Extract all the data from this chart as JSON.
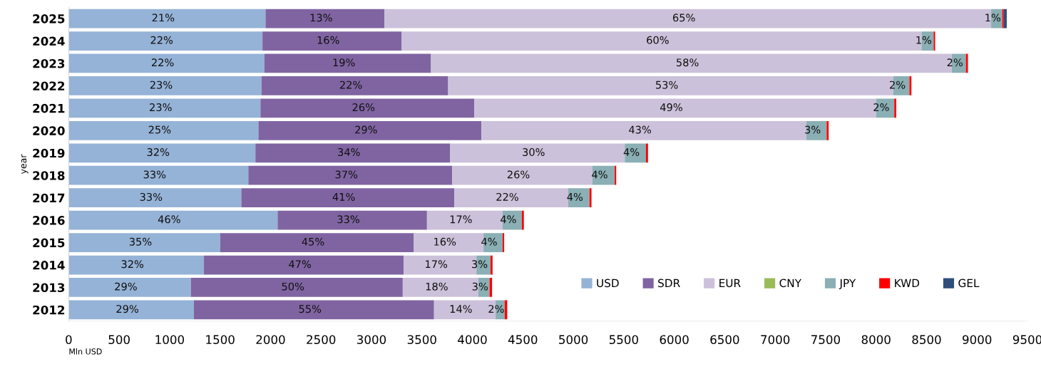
{
  "chart_data": {
    "type": "bar",
    "orientation": "horizontal",
    "stacked": true,
    "ylabel": "year",
    "xlabel": "Mln USD",
    "categories": [
      "2025",
      "2024",
      "2023",
      "2022",
      "2021",
      "2020",
      "2019",
      "2018",
      "2017",
      "2016",
      "2015",
      "2014",
      "2013",
      "2012"
    ],
    "series": [
      {
        "name": "USD",
        "color": "#95b3d7",
        "values": [
          1950,
          1920,
          1940,
          1910,
          1900,
          1880,
          1850,
          1780,
          1710,
          2070,
          1500,
          1340,
          1210,
          1240
        ]
      },
      {
        "name": "SDR",
        "color": "#8064a2",
        "values": [
          1180,
          1380,
          1650,
          1850,
          2120,
          2210,
          1930,
          2020,
          2110,
          1480,
          1920,
          1980,
          2100,
          2380
        ]
      },
      {
        "name": "EUR",
        "color": "#ccc1da",
        "values": [
          6010,
          5150,
          5160,
          4410,
          3980,
          3220,
          1730,
          1390,
          1130,
          750,
          690,
          720,
          750,
          610
        ]
      },
      {
        "name": "CNY",
        "color": "#9bbb59",
        "values": [
          0,
          0,
          0,
          0,
          0,
          0,
          0,
          0,
          0,
          0,
          0,
          0,
          0,
          0
        ]
      },
      {
        "name": "JPY",
        "color": "#8aafb5",
        "values": [
          110,
          120,
          140,
          160,
          180,
          200,
          210,
          220,
          210,
          190,
          190,
          140,
          110,
          90
        ]
      },
      {
        "name": "KWD",
        "color": "#ff0000",
        "values": [
          15,
          15,
          20,
          20,
          20,
          20,
          20,
          15,
          20,
          20,
          15,
          20,
          25,
          25
        ]
      },
      {
        "name": "GEL",
        "color": "#2f4e7a",
        "values": [
          30,
          0,
          0,
          0,
          0,
          0,
          0,
          0,
          0,
          0,
          0,
          0,
          0,
          0
        ]
      }
    ],
    "annotations": [
      {
        "text": "21%",
        "x": 975,
        "y": "2025"
      },
      {
        "text": "13%",
        "x": 2540,
        "y": "2025"
      },
      {
        "text": "65%",
        "x": 6135,
        "y": "2025"
      },
      {
        "text": "1%",
        "x": 9195,
        "y": "2025"
      },
      {
        "text": "22%",
        "x": 960,
        "y": "2024"
      },
      {
        "text": "16%",
        "x": 2610,
        "y": "2024"
      },
      {
        "text": "60%",
        "x": 5875,
        "y": "2024"
      },
      {
        "text": "1%",
        "x": 8510,
        "y": "2024"
      },
      {
        "text": "22%",
        "x": 970,
        "y": "2023"
      },
      {
        "text": "19%",
        "x": 2765,
        "y": "2023"
      },
      {
        "text": "58%",
        "x": 6170,
        "y": "2023"
      },
      {
        "text": "2%",
        "x": 8820,
        "y": "2023"
      },
      {
        "text": "23%",
        "x": 955,
        "y": "2022"
      },
      {
        "text": "22%",
        "x": 2835,
        "y": "2022"
      },
      {
        "text": "53%",
        "x": 5965,
        "y": "2022"
      },
      {
        "text": "2%",
        "x": 8250,
        "y": "2022"
      },
      {
        "text": "23%",
        "x": 950,
        "y": "2021"
      },
      {
        "text": "26%",
        "x": 2960,
        "y": "2021"
      },
      {
        "text": "49%",
        "x": 6010,
        "y": "2021"
      },
      {
        "text": "2%",
        "x": 8090,
        "y": "2021"
      },
      {
        "text": "25%",
        "x": 940,
        "y": "2020"
      },
      {
        "text": "29%",
        "x": 2985,
        "y": "2020"
      },
      {
        "text": "43%",
        "x": 5700,
        "y": "2020"
      },
      {
        "text": "3%",
        "x": 7410,
        "y": "2020"
      },
      {
        "text": "32%",
        "x": 925,
        "y": "2019"
      },
      {
        "text": "34%",
        "x": 2815,
        "y": "2019"
      },
      {
        "text": "30%",
        "x": 4645,
        "y": "2019"
      },
      {
        "text": "4%",
        "x": 5615,
        "y": "2019"
      },
      {
        "text": "33%",
        "x": 890,
        "y": "2018"
      },
      {
        "text": "37%",
        "x": 2790,
        "y": "2018"
      },
      {
        "text": "26%",
        "x": 4495,
        "y": "2018"
      },
      {
        "text": "4%",
        "x": 5300,
        "y": "2018"
      },
      {
        "text": "33%",
        "x": 855,
        "y": "2017"
      },
      {
        "text": "41%",
        "x": 2765,
        "y": "2017"
      },
      {
        "text": "22%",
        "x": 4385,
        "y": "2017"
      },
      {
        "text": "4%",
        "x": 5055,
        "y": "2017"
      },
      {
        "text": "46%",
        "x": 1035,
        "y": "2016"
      },
      {
        "text": "33%",
        "x": 2810,
        "y": "2016"
      },
      {
        "text": "17%",
        "x": 3925,
        "y": "2016"
      },
      {
        "text": "4%",
        "x": 4395,
        "y": "2016"
      },
      {
        "text": "35%",
        "x": 750,
        "y": "2015"
      },
      {
        "text": "45%",
        "x": 2460,
        "y": "2015"
      },
      {
        "text": "16%",
        "x": 3765,
        "y": "2015"
      },
      {
        "text": "4%",
        "x": 4205,
        "y": "2015"
      },
      {
        "text": "32%",
        "x": 670,
        "y": "2014"
      },
      {
        "text": "47%",
        "x": 2330,
        "y": "2014"
      },
      {
        "text": "17%",
        "x": 3680,
        "y": "2014"
      },
      {
        "text": "3%",
        "x": 4110,
        "y": "2014"
      },
      {
        "text": "29%",
        "x": 605,
        "y": "2013"
      },
      {
        "text": "50%",
        "x": 2260,
        "y": "2013"
      },
      {
        "text": "18%",
        "x": 3685,
        "y": "2013"
      },
      {
        "text": "3%",
        "x": 4115,
        "y": "2013"
      },
      {
        "text": "29%",
        "x": 620,
        "y": "2012"
      },
      {
        "text": "55%",
        "x": 2430,
        "y": "2012"
      },
      {
        "text": "14%",
        "x": 3925,
        "y": "2012"
      },
      {
        "text": "2%",
        "x": 4275,
        "y": "2012"
      }
    ],
    "xlim": [
      0,
      9500
    ],
    "xticks": [
      0,
      500,
      1000,
      1500,
      2000,
      2500,
      3000,
      3500,
      4000,
      4500,
      5000,
      5500,
      6000,
      6500,
      7000,
      7500,
      8000,
      8500,
      9000,
      9500
    ],
    "grid": false,
    "legend": "bottom right"
  }
}
